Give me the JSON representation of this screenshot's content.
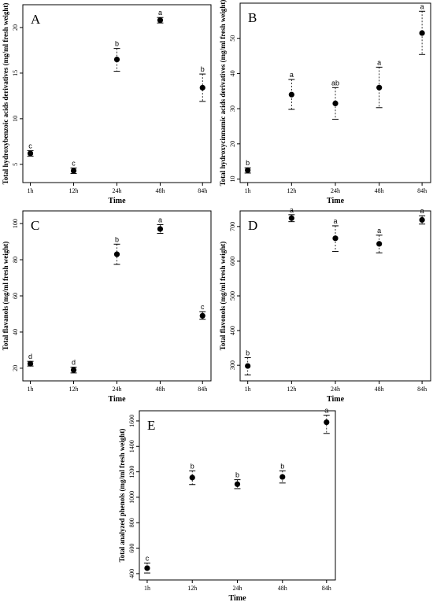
{
  "chart_data": [
    {
      "type": "scatter",
      "panel_label": "A",
      "categories": [
        "1h",
        "12h",
        "24h",
        "48h",
        "84h"
      ],
      "xlabel": "Time",
      "ylabel": "Total hydroxybenzoic acids derivatives (mg/ml fresh weight)",
      "ylim": [
        3,
        22.5
      ],
      "yticks": [
        5,
        10,
        15,
        20
      ],
      "series": [
        {
          "values": [
            6.2,
            4.3,
            16.5,
            20.8,
            13.4
          ],
          "error_low": [
            5.9,
            4.0,
            15.2,
            20.5,
            11.9
          ],
          "error_high": [
            6.5,
            4.6,
            17.7,
            21.1,
            14.9
          ],
          "letters": [
            "c",
            "c",
            "b",
            "a",
            "b"
          ]
        }
      ],
      "grid": false
    },
    {
      "type": "scatter",
      "panel_label": "B",
      "categories": [
        "1h",
        "12h",
        "24h",
        "48h",
        "84h"
      ],
      "xlabel": "Time",
      "ylabel": "Total hydroxycinnamic acids derivatives (mg/ml fresh weight)",
      "ylim": [
        9,
        60
      ],
      "yticks": [
        10,
        20,
        30,
        40,
        50
      ],
      "series": [
        {
          "values": [
            12.5,
            34,
            31.5,
            36,
            51.5
          ],
          "error_low": [
            11.7,
            29.8,
            27,
            30.3,
            45.4
          ],
          "error_high": [
            13.2,
            38.3,
            36,
            41.8,
            57.7
          ],
          "letters": [
            "b",
            "a",
            "ab",
            "a",
            "a"
          ]
        }
      ],
      "grid": false
    },
    {
      "type": "scatter",
      "panel_label": "C",
      "categories": [
        "1h",
        "12h",
        "24h",
        "48h",
        "84h"
      ],
      "xlabel": "Time",
      "ylabel": "Total flavanols (mg/ml fresh weight)",
      "ylim": [
        13,
        107
      ],
      "yticks": [
        20,
        40,
        60,
        80,
        100
      ],
      "series": [
        {
          "values": [
            22.5,
            19,
            83,
            97,
            49
          ],
          "error_low": [
            21.2,
            17.4,
            77.4,
            94.6,
            47.1
          ],
          "error_high": [
            23.8,
            20.6,
            88.6,
            99.4,
            51.3
          ],
          "letters": [
            "d",
            "d",
            "b",
            "a",
            "c"
          ]
        }
      ],
      "grid": false
    },
    {
      "type": "scatter",
      "panel_label": "D",
      "categories": [
        "1h",
        "12h",
        "24h",
        "48h",
        "84h"
      ],
      "xlabel": "Time",
      "ylabel": "Total flavonols (mg/ml fresh weight)",
      "ylim": [
        255,
        745
      ],
      "yticks": [
        300,
        400,
        500,
        600,
        700
      ],
      "series": [
        {
          "values": [
            298,
            724,
            666,
            650,
            719
          ],
          "error_low": [
            272,
            714,
            628,
            624,
            707
          ],
          "error_high": [
            322,
            734,
            702,
            675,
            731
          ],
          "letters": [
            "b",
            "a",
            "a",
            "a",
            "a"
          ]
        }
      ],
      "grid": false
    },
    {
      "type": "scatter",
      "panel_label": "E",
      "categories": [
        "1h",
        "12h",
        "24h",
        "48h",
        "84h"
      ],
      "xlabel": "Time",
      "ylabel": "Total analyzed phenols (mg/ml fresh weight)",
      "ylim": [
        350,
        1680
      ],
      "yticks": [
        400,
        600,
        800,
        1000,
        1200,
        1400,
        1600
      ],
      "series": [
        {
          "values": [
            443,
            1155,
            1103,
            1160,
            1590
          ],
          "error_low": [
            405,
            1100,
            1068,
            1112,
            1502
          ],
          "error_high": [
            483,
            1208,
            1138,
            1208,
            1645
          ],
          "letters": [
            "c",
            "b",
            "b",
            "b",
            "a"
          ]
        }
      ],
      "grid": false
    }
  ]
}
